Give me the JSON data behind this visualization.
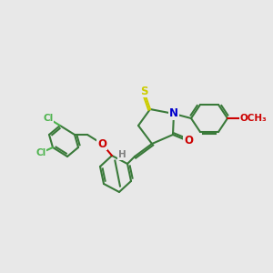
{
  "bg_color": "#e8e8e8",
  "bond_color": "#3a7a3a",
  "bond_width": 1.5,
  "atom_colors": {
    "Cl": "#4db34d",
    "O": "#cc0000",
    "N": "#0000cc",
    "S": "#cccc00",
    "C": "#3a7a3a",
    "H": "#808080"
  },
  "font_size": 7.5
}
